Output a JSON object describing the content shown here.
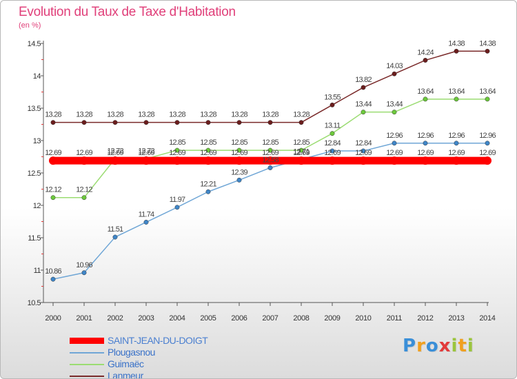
{
  "title": "Evolution du Taux de Taxe d'Habitation",
  "subtitle": "(en %)",
  "brand": {
    "text": "Proxiti",
    "colors": [
      "#3a8fd8",
      "#f0a020",
      "#3a8fd8",
      "#e23a3a",
      "#9bc53d",
      "#f0a020",
      "#9bc53d"
    ]
  },
  "chart_data": {
    "type": "line",
    "title": "Evolution du Taux de Taxe d'Habitation",
    "ylabel": "(en %)",
    "xlabel": "",
    "ylim": [
      10.5,
      14.5
    ],
    "yticks": [
      10.5,
      11,
      11.5,
      12,
      12.5,
      13,
      13.5,
      14,
      14.5
    ],
    "grid": false,
    "legend_position": "bottom-left",
    "categories": [
      "2000",
      "2001",
      "2002",
      "2003",
      "2004",
      "2005",
      "2006",
      "2007",
      "2008",
      "2009",
      "2010",
      "2011",
      "2012",
      "2013",
      "2014"
    ],
    "series": [
      {
        "name": "SAINT-JEAN-DU-DOIGT",
        "color": "#ff0000",
        "point_color": "#ff0000",
        "values": [
          12.69,
          12.69,
          12.69,
          12.69,
          12.69,
          12.69,
          12.69,
          12.69,
          12.69,
          12.69,
          12.69,
          12.69,
          12.69,
          12.69,
          12.69
        ]
      },
      {
        "name": "Plougasnou",
        "color": "#6fa6d6",
        "point_color": "#3f86c8",
        "values": [
          10.86,
          10.96,
          11.51,
          11.74,
          11.97,
          12.21,
          12.39,
          12.58,
          12.71,
          12.84,
          12.84,
          12.96,
          12.96,
          12.96,
          12.96
        ]
      },
      {
        "name": "Guimaëc",
        "color": "#9bdc72",
        "point_color": "#6cc93b",
        "values": [
          12.12,
          12.12,
          12.72,
          12.72,
          12.85,
          12.85,
          12.85,
          12.85,
          12.85,
          13.11,
          13.44,
          13.44,
          13.64,
          13.64,
          13.64
        ]
      },
      {
        "name": "Lanmeur",
        "color": "#7a2a2a",
        "point_color": "#6b1d1d",
        "values": [
          13.28,
          13.28,
          13.28,
          13.28,
          13.28,
          13.28,
          13.28,
          13.28,
          13.28,
          13.55,
          13.82,
          14.03,
          14.24,
          14.38,
          14.38
        ]
      }
    ]
  }
}
